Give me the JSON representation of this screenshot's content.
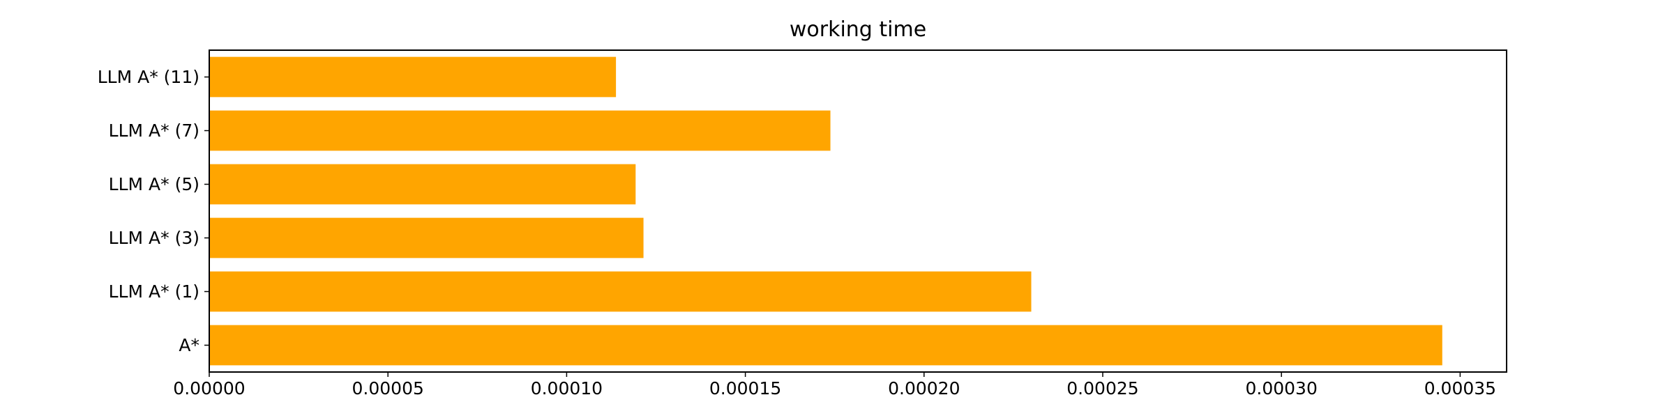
{
  "chart_data": {
    "type": "bar",
    "orientation": "horizontal",
    "title": "working time",
    "xlabel": "",
    "ylabel": "",
    "categories": [
      "A*",
      "LLM A* (1)",
      "LLM A* (3)",
      "LLM A* (5)",
      "LLM A* (7)",
      "LLM A* (11)"
    ],
    "values": [
      0.000345,
      0.00023,
      0.0001215,
      0.0001193,
      0.0001738,
      0.0001138
    ],
    "xlim": [
      0,
      0.000363
    ],
    "xticks": [
      0.0,
      5e-05,
      0.0001,
      0.00015,
      0.0002,
      0.00025,
      0.0003,
      0.00035
    ],
    "xtick_labels": [
      "0.00000",
      "0.00005",
      "0.00010",
      "0.00015",
      "0.00020",
      "0.00025",
      "0.00030",
      "0.00035"
    ],
    "bar_color": "#ffa500",
    "grid": false,
    "legend": "none"
  }
}
